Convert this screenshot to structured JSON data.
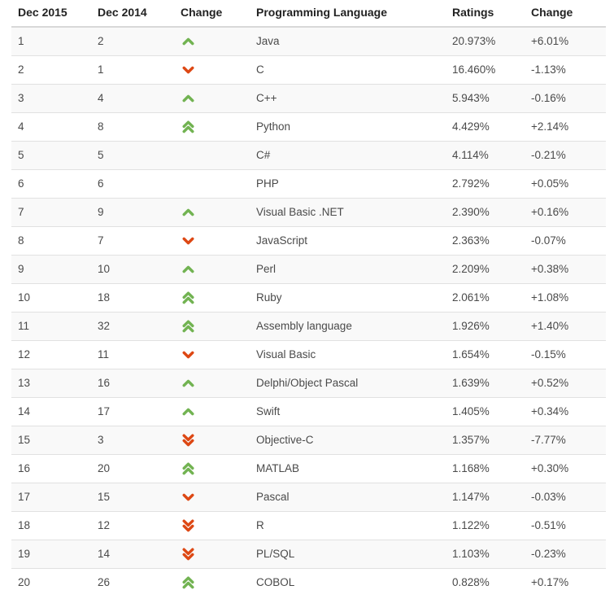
{
  "colors": {
    "up_green": "#72b352",
    "down_red": "#dd4814",
    "stripe": "#f9f9f9",
    "body_text": "#4a4a4a",
    "header_text": "#222222"
  },
  "table": {
    "headers": [
      "Dec 2015",
      "Dec 2014",
      "Change",
      "Programming Language",
      "Ratings",
      "Change"
    ],
    "rows": [
      {
        "dec2015": "1",
        "dec2014": "2",
        "move": "up",
        "language": "Java",
        "ratings": "20.973%",
        "change": "+6.01%"
      },
      {
        "dec2015": "2",
        "dec2014": "1",
        "move": "down",
        "language": "C",
        "ratings": "16.460%",
        "change": "-1.13%"
      },
      {
        "dec2015": "3",
        "dec2014": "4",
        "move": "up",
        "language": "C++",
        "ratings": "5.943%",
        "change": "-0.16%"
      },
      {
        "dec2015": "4",
        "dec2014": "8",
        "move": "up-double",
        "language": "Python",
        "ratings": "4.429%",
        "change": "+2.14%"
      },
      {
        "dec2015": "5",
        "dec2014": "5",
        "move": "none",
        "language": "C#",
        "ratings": "4.114%",
        "change": "-0.21%"
      },
      {
        "dec2015": "6",
        "dec2014": "6",
        "move": "none",
        "language": "PHP",
        "ratings": "2.792%",
        "change": "+0.05%"
      },
      {
        "dec2015": "7",
        "dec2014": "9",
        "move": "up",
        "language": "Visual Basic .NET",
        "ratings": "2.390%",
        "change": "+0.16%"
      },
      {
        "dec2015": "8",
        "dec2014": "7",
        "move": "down",
        "language": "JavaScript",
        "ratings": "2.363%",
        "change": "-0.07%"
      },
      {
        "dec2015": "9",
        "dec2014": "10",
        "move": "up",
        "language": "Perl",
        "ratings": "2.209%",
        "change": "+0.38%"
      },
      {
        "dec2015": "10",
        "dec2014": "18",
        "move": "up-double",
        "language": "Ruby",
        "ratings": "2.061%",
        "change": "+1.08%"
      },
      {
        "dec2015": "11",
        "dec2014": "32",
        "move": "up-double",
        "language": "Assembly language",
        "ratings": "1.926%",
        "change": "+1.40%"
      },
      {
        "dec2015": "12",
        "dec2014": "11",
        "move": "down",
        "language": "Visual Basic",
        "ratings": "1.654%",
        "change": "-0.15%"
      },
      {
        "dec2015": "13",
        "dec2014": "16",
        "move": "up",
        "language": "Delphi/Object Pascal",
        "ratings": "1.639%",
        "change": "+0.52%"
      },
      {
        "dec2015": "14",
        "dec2014": "17",
        "move": "up",
        "language": "Swift",
        "ratings": "1.405%",
        "change": "+0.34%"
      },
      {
        "dec2015": "15",
        "dec2014": "3",
        "move": "down-double",
        "language": "Objective-C",
        "ratings": "1.357%",
        "change": "-7.77%"
      },
      {
        "dec2015": "16",
        "dec2014": "20",
        "move": "up-double",
        "language": "MATLAB",
        "ratings": "1.168%",
        "change": "+0.30%"
      },
      {
        "dec2015": "17",
        "dec2014": "15",
        "move": "down",
        "language": "Pascal",
        "ratings": "1.147%",
        "change": "-0.03%"
      },
      {
        "dec2015": "18",
        "dec2014": "12",
        "move": "down-double",
        "language": "R",
        "ratings": "1.122%",
        "change": "-0.51%"
      },
      {
        "dec2015": "19",
        "dec2014": "14",
        "move": "down-double",
        "language": "PL/SQL",
        "ratings": "1.103%",
        "change": "-0.23%"
      },
      {
        "dec2015": "20",
        "dec2014": "26",
        "move": "up-double",
        "language": "COBOL",
        "ratings": "0.828%",
        "change": "+0.17%"
      }
    ]
  }
}
